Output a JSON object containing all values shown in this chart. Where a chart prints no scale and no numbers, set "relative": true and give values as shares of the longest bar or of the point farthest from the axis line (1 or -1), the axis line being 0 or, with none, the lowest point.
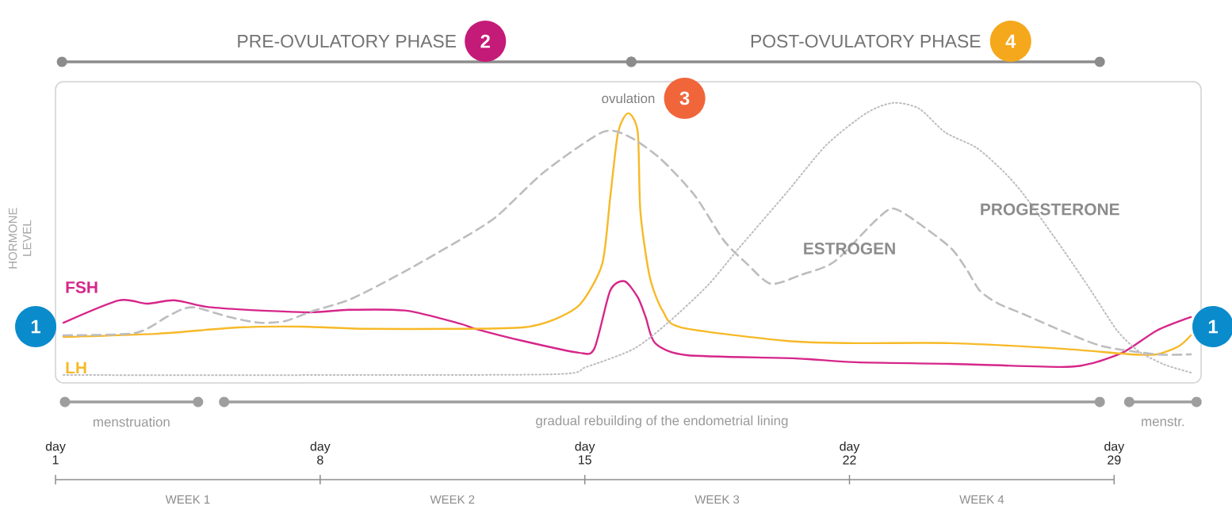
{
  "chart_data": {
    "type": "line",
    "relative": true,
    "ylabel": "HORMONE LEVEL",
    "xlim": [
      1,
      31.3
    ],
    "xticks": [
      1,
      8,
      15,
      22,
      29
    ],
    "grid": false,
    "marker": "none",
    "series": [
      {
        "name": "FSH",
        "color": "#d6268a",
        "line_style": "solid",
        "x": [
          1.21,
          2.68,
          3.41,
          4.14,
          4.98,
          5.82,
          7.71,
          8.75,
          10.28,
          11.69,
          12.11,
          13.36,
          14.83,
          15.25,
          15.67,
          16.05,
          16.4,
          16.61,
          16.86,
          17.7,
          20.49,
          22.17,
          24.68,
          27.61,
          28.45,
          29.29,
          30.13,
          31.03
        ],
        "values": [
          0.215,
          0.295,
          0.283,
          0.295,
          0.272,
          0.263,
          0.252,
          0.261,
          0.258,
          0.212,
          0.193,
          0.15,
          0.108,
          0.122,
          0.329,
          0.363,
          0.306,
          0.235,
          0.142,
          0.099,
          0.088,
          0.074,
          0.068,
          0.057,
          0.071,
          0.113,
          0.187,
          0.235
        ]
      },
      {
        "name": "LH",
        "color": "#f7b928",
        "line_style": "solid",
        "x": [
          1.21,
          3.72,
          5.82,
          7.5,
          9.17,
          11.69,
          13.36,
          14.2,
          14.89,
          15.46,
          15.67,
          15.88,
          16.15,
          16.4,
          16.47,
          16.72,
          17.07,
          17.55,
          20.34,
          22.17,
          24.68,
          27.61,
          29.44,
          30.13,
          30.7,
          31.03
        ],
        "values": [
          0.164,
          0.176,
          0.198,
          0.201,
          0.193,
          0.193,
          0.198,
          0.227,
          0.283,
          0.425,
          0.66,
          0.895,
          0.963,
          0.895,
          0.612,
          0.377,
          0.255,
          0.198,
          0.15,
          0.142,
          0.142,
          0.122,
          0.102,
          0.102,
          0.13,
          0.17
        ]
      },
      {
        "name": "ESTROGEN",
        "color": "#bdbdc1",
        "line_style": "dashed",
        "x": [
          1.21,
          3.1,
          3.93,
          4.35,
          4.71,
          5.61,
          6.39,
          7.08,
          7.77,
          8.82,
          10.22,
          11.69,
          12.67,
          13.93,
          15.46,
          16.15,
          16.99,
          17.91,
          18.67,
          19.29,
          19.92,
          20.7,
          21.6,
          22.65,
          23.15,
          23.78,
          24.68,
          25.1,
          25.45,
          25.94,
          26.63,
          27.76,
          28.72,
          30.13,
          31.03
        ],
        "values": [
          0.17,
          0.178,
          0.235,
          0.263,
          0.269,
          0.235,
          0.215,
          0.221,
          0.255,
          0.3,
          0.397,
          0.51,
          0.595,
          0.754,
          0.895,
          0.881,
          0.802,
          0.669,
          0.51,
          0.425,
          0.354,
          0.385,
          0.433,
          0.575,
          0.623,
          0.575,
          0.482,
          0.405,
          0.329,
          0.283,
          0.244,
          0.178,
          0.13,
          0.102,
          0.102
        ]
      },
      {
        "name": "PROGESTERONE",
        "color": "#bdbdc1",
        "line_style": "dotted",
        "x": [
          1.21,
          7.92,
          14.2,
          15.04,
          16.3,
          17.2,
          18.25,
          19.08,
          20.34,
          21.39,
          22.44,
          23.15,
          23.84,
          24.53,
          25.37,
          26.08,
          26.63,
          27.68,
          28.39,
          29.08,
          29.65,
          30.34,
          31.03
        ],
        "values": [
          0.028,
          0.028,
          0.031,
          0.057,
          0.122,
          0.215,
          0.348,
          0.482,
          0.68,
          0.85,
          0.963,
          1.0,
          0.98,
          0.895,
          0.839,
          0.754,
          0.669,
          0.47,
          0.329,
          0.187,
          0.113,
          0.065,
          0.037
        ]
      }
    ],
    "annotations": [
      {
        "text": "ovulation",
        "x": 16.15,
        "y": 0.963
      },
      "PRE-OVULATORY PHASE",
      "2",
      "POST-OVULATORY PHASE",
      "4",
      "3",
      "1",
      "1",
      "menstruation",
      "gradual rebuilding of the endometrial lining",
      "menstr.",
      "day",
      "day",
      "day",
      "day",
      "day",
      "WEEK 1",
      "WEEK 2",
      "WEEK 3",
      "WEEK 4"
    ]
  }
}
